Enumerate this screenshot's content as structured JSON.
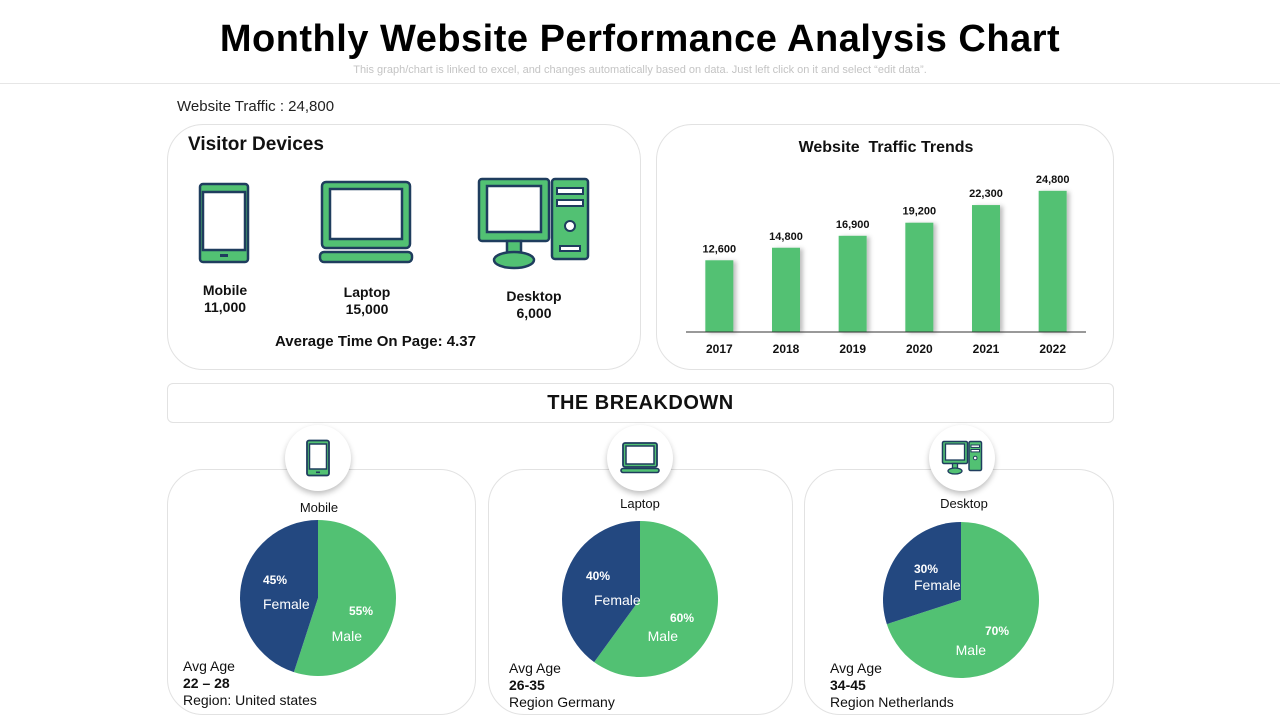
{
  "header": {
    "title": "Monthly Website Performance Analysis Chart",
    "subtitle": "This graph/chart is linked to excel, and changes automatically based on data. Just left click on it and select “edit data”."
  },
  "website_traffic_label": "Website Traffic : 24,800",
  "visitor_devices": {
    "title": "Visitor Devices",
    "devices": [
      {
        "name": "Mobile",
        "value": "11,000",
        "icon": "mobile-icon"
      },
      {
        "name": "Laptop",
        "value": "15,000",
        "icon": "laptop-icon"
      },
      {
        "name": "Desktop",
        "value": "6,000",
        "icon": "desktop-icon"
      }
    ],
    "avg_time": "Average Time On Page: 4.37"
  },
  "colors": {
    "green": "#52c173",
    "navy": "#234880",
    "icon_stroke": "#1f3d5e"
  },
  "breakdown": {
    "title": "THE BREAKDOWN",
    "panels": [
      {
        "device": "Mobile",
        "avg_age_label": "Avg Age",
        "avg_age": "22 – 28",
        "region": "Region: United states"
      },
      {
        "device": "Laptop",
        "avg_age_label": "Avg Age",
        "avg_age": "26-35",
        "region": "Region Germany"
      },
      {
        "device": "Desktop",
        "avg_age_label": "Avg Age",
        "avg_age": "34-45",
        "region": "Region Netherlands"
      }
    ]
  },
  "chart_data": [
    {
      "type": "bar",
      "title": "Website  Traffic Trends",
      "categories": [
        "2017",
        "2018",
        "2019",
        "2020",
        "2021",
        "2022"
      ],
      "values": [
        12600,
        14800,
        16900,
        19200,
        22300,
        24800
      ],
      "data_labels": [
        "12,600",
        "14,800",
        "16,900",
        "19,200",
        "22,300",
        "24,800"
      ],
      "ylim": [
        0,
        26000
      ],
      "grid": false,
      "legend": "none"
    },
    {
      "type": "pie",
      "title": "Mobile",
      "slices": [
        {
          "label": "Female",
          "value": 45,
          "pct_label": "45%",
          "color": "#234880"
        },
        {
          "label": "Male",
          "value": 55,
          "pct_label": "55%",
          "color": "#52c173"
        }
      ]
    },
    {
      "type": "pie",
      "title": "Laptop",
      "slices": [
        {
          "label": "Female",
          "value": 40,
          "pct_label": "40%",
          "color": "#234880"
        },
        {
          "label": "Male",
          "value": 60,
          "pct_label": "60%",
          "color": "#52c173"
        }
      ]
    },
    {
      "type": "pie",
      "title": "Desktop",
      "slices": [
        {
          "label": "Female",
          "value": 30,
          "pct_label": "30%",
          "color": "#234880"
        },
        {
          "label": "Male",
          "value": 70,
          "pct_label": "70%",
          "color": "#52c173"
        }
      ]
    }
  ]
}
